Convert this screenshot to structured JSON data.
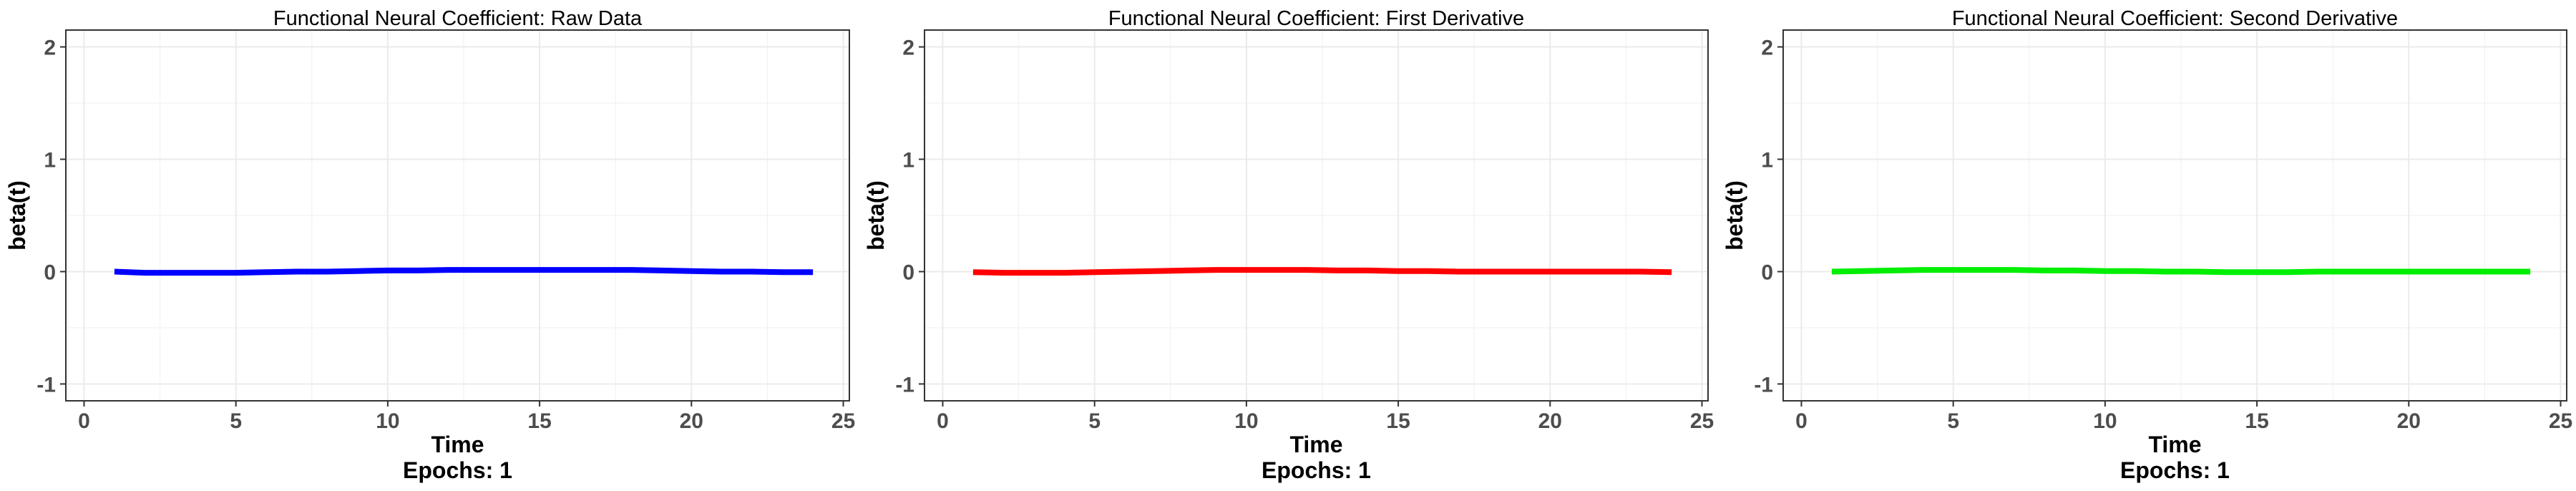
{
  "chart_data": [
    {
      "type": "line",
      "title": "Functional Neural Coefficient: Raw Data",
      "xlabel": "Time",
      "xlabel_sub": "Epochs: 1",
      "ylabel": "beta(t)",
      "xlim": [
        0,
        25
      ],
      "ylim": [
        -1,
        2
      ],
      "xticks": [
        "0",
        "5",
        "10",
        "15",
        "20",
        "25"
      ],
      "yticks": [
        "-1",
        "0",
        "1",
        "2"
      ],
      "grid": true,
      "series": [
        {
          "color": "#0000ff",
          "x": [
            1,
            2,
            3,
            4,
            5,
            6,
            7,
            8,
            9,
            10,
            11,
            12,
            13,
            14,
            15,
            16,
            17,
            18,
            19,
            20,
            21,
            22,
            23,
            24
          ],
          "y": [
            0.0,
            -0.01,
            -0.01,
            -0.01,
            -0.01,
            -0.005,
            0.0,
            0.0,
            0.005,
            0.01,
            0.01,
            0.015,
            0.015,
            0.015,
            0.015,
            0.015,
            0.015,
            0.015,
            0.01,
            0.005,
            0.0,
            0.0,
            -0.005,
            -0.005
          ]
        }
      ]
    },
    {
      "type": "line",
      "title": "Functional Neural Coefficient: First Derivative",
      "xlabel": "Time",
      "xlabel_sub": "Epochs: 1",
      "ylabel": "beta(t)",
      "xlim": [
        0,
        25
      ],
      "ylim": [
        -1,
        2
      ],
      "xticks": [
        "0",
        "5",
        "10",
        "15",
        "20",
        "25"
      ],
      "yticks": [
        "-1",
        "0",
        "1",
        "2"
      ],
      "grid": true,
      "series": [
        {
          "color": "#ff0000",
          "x": [
            1,
            2,
            3,
            4,
            5,
            6,
            7,
            8,
            9,
            10,
            11,
            12,
            13,
            14,
            15,
            16,
            17,
            18,
            19,
            20,
            21,
            22,
            23,
            24
          ],
          "y": [
            -0.005,
            -0.01,
            -0.01,
            -0.01,
            -0.005,
            0.0,
            0.005,
            0.01,
            0.015,
            0.015,
            0.015,
            0.015,
            0.01,
            0.01,
            0.005,
            0.005,
            0.0,
            0.0,
            0.0,
            0.0,
            0.0,
            0.0,
            0.0,
            -0.005
          ]
        }
      ]
    },
    {
      "type": "line",
      "title": "Functional Neural Coefficient: Second Derivative",
      "xlabel": "Time",
      "xlabel_sub": "Epochs: 1",
      "ylabel": "beta(t)",
      "xlim": [
        0,
        25
      ],
      "ylim": [
        -1,
        2
      ],
      "xticks": [
        "0",
        "5",
        "10",
        "15",
        "20",
        "25"
      ],
      "yticks": [
        "-1",
        "0",
        "1",
        "2"
      ],
      "grid": true,
      "series": [
        {
          "color": "#00ee00",
          "x": [
            1,
            2,
            3,
            4,
            5,
            6,
            7,
            8,
            9,
            10,
            11,
            12,
            13,
            14,
            15,
            16,
            17,
            18,
            19,
            20,
            21,
            22,
            23,
            24
          ],
          "y": [
            0.0,
            0.005,
            0.01,
            0.015,
            0.015,
            0.015,
            0.015,
            0.01,
            0.01,
            0.005,
            0.005,
            0.0,
            0.0,
            -0.005,
            -0.005,
            -0.005,
            0.0,
            0.0,
            0.0,
            0.0,
            0.0,
            0.0,
            0.0,
            0.0
          ]
        }
      ]
    }
  ]
}
